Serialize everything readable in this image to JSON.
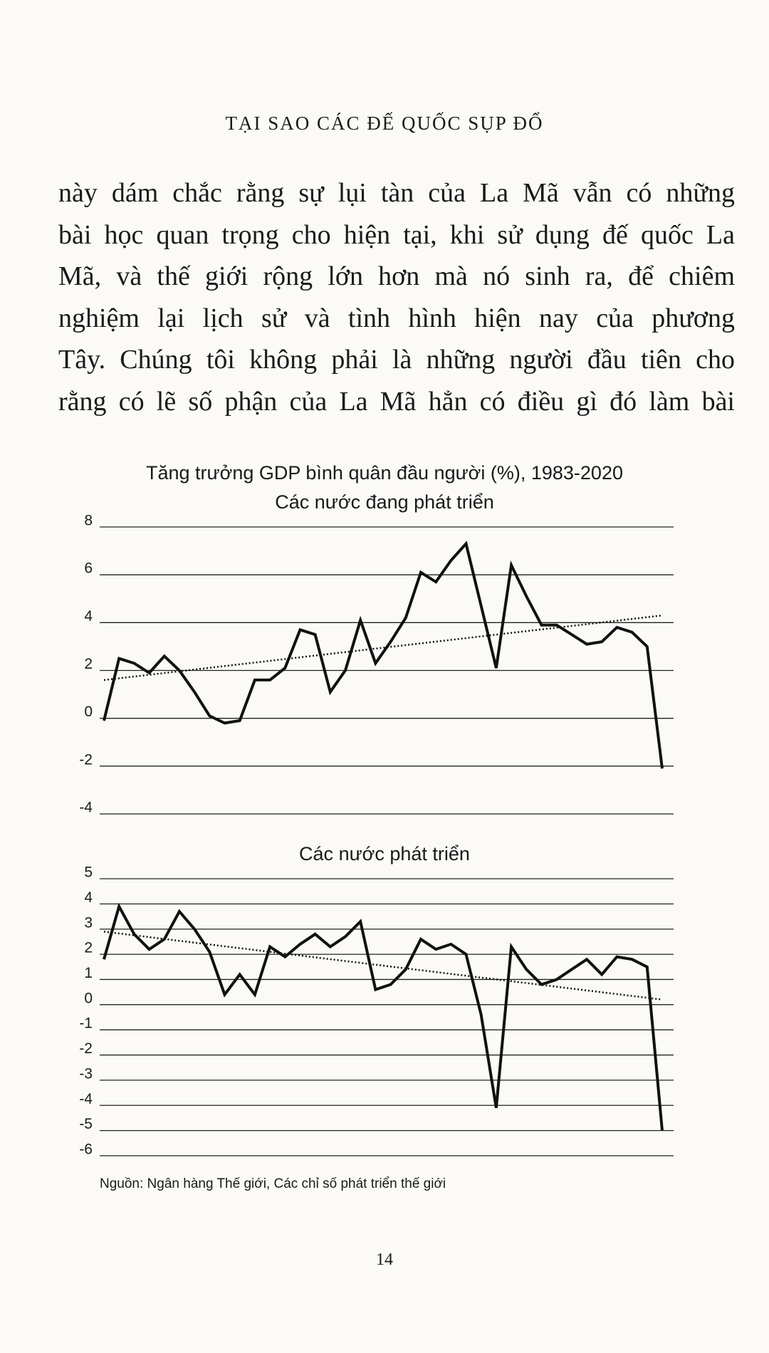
{
  "header": {
    "title": "TẠI SAO CÁC ĐẾ QUỐC SỤP ĐỔ"
  },
  "paragraph": {
    "lines": [
      "này dám chắc rằng sự lụi tàn của La Mã vẫn có những",
      "bài học quan trọng cho hiện tại, khi sử dụng đế quốc La",
      "Mã, và thế giới rộng lớn hơn mà nó sinh ra, để chiêm",
      "nghiệm lại lịch sử và tình hình hiện nay của phương",
      "Tây. Chúng tôi không phải là những người đầu tiên cho",
      "rằng có lẽ số phận của La Mã hẳn có điều gì đó làm bài"
    ]
  },
  "chart_data": [
    {
      "type": "line",
      "title": "Tăng trưởng GDP bình quân đầu người (%), 1983-2020",
      "subtitle": "Các nước đang phát triển",
      "color": "#111111",
      "trend_color": "#111111",
      "values": [
        -0.1,
        2.5,
        2.3,
        1.9,
        2.6,
        2.0,
        1.1,
        0.1,
        -0.2,
        -0.1,
        1.6,
        1.6,
        2.1,
        3.7,
        3.5,
        1.1,
        2.0,
        4.1,
        2.3,
        3.2,
        4.2,
        6.1,
        5.7,
        6.6,
        7.3,
        4.7,
        2.1,
        6.4,
        5.1,
        3.9,
        3.9,
        3.5,
        3.1,
        3.2,
        3.8,
        3.6,
        3.0,
        -2.1
      ],
      "trend_line": [
        1.6,
        4.3
      ],
      "ylim": [
        -4,
        8
      ],
      "yticks": [
        -4,
        -2,
        0,
        2,
        4,
        6,
        8
      ],
      "grid": true
    },
    {
      "type": "line",
      "subtitle": "Các nước phát triển",
      "color": "#111111",
      "trend_color": "#111111",
      "values": [
        1.8,
        3.9,
        2.8,
        2.2,
        2.6,
        3.7,
        3.0,
        2.1,
        0.4,
        1.2,
        0.4,
        2.3,
        1.9,
        2.4,
        2.8,
        2.3,
        2.7,
        3.3,
        0.6,
        0.8,
        1.4,
        2.6,
        2.2,
        2.4,
        2.0,
        -0.4,
        -4.1,
        2.3,
        1.4,
        0.8,
        1.0,
        1.4,
        1.8,
        1.2,
        1.9,
        1.8,
        1.5,
        -5.0
      ],
      "trend_line": [
        2.9,
        0.2
      ],
      "ylim": [
        -6,
        5
      ],
      "yticks": [
        -6,
        -5,
        -4,
        -3,
        -2,
        -1,
        0,
        1,
        2,
        3,
        4,
        5
      ],
      "grid": true
    }
  ],
  "source": "Nguồn: Ngân hàng Thế giới, Các chỉ số phát triển thế giới",
  "page_number": "14"
}
